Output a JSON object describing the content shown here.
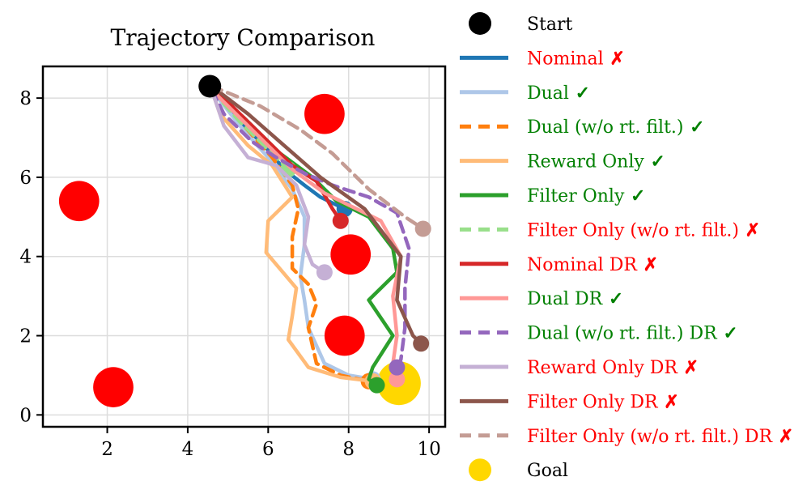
{
  "chart_data": {
    "type": "line",
    "title": "Trajectory Comparison",
    "xlabel": "",
    "ylabel": "",
    "xlim": [
      0.4,
      10.4
    ],
    "ylim": [
      -0.3,
      8.8
    ],
    "xticks": [
      2,
      4,
      6,
      8,
      10
    ],
    "yticks": [
      0,
      2,
      4,
      6,
      8
    ],
    "grid": true,
    "start": {
      "name": "Start",
      "x": 4.55,
      "y": 8.3,
      "color": "#000000"
    },
    "goal": {
      "name": "Goal",
      "x": 9.25,
      "y": 0.8,
      "color": "#ffd700"
    },
    "obstacles": [
      {
        "x": 1.3,
        "y": 5.4,
        "r": 0.5
      },
      {
        "x": 7.4,
        "y": 7.6,
        "r": 0.5
      },
      {
        "x": 8.05,
        "y": 4.05,
        "r": 0.5
      },
      {
        "x": 7.9,
        "y": 2.0,
        "r": 0.5
      },
      {
        "x": 2.15,
        "y": 0.7,
        "r": 0.5
      }
    ],
    "series": [
      {
        "name": "Nominal",
        "mark": "✗",
        "status_color": "#ff0000",
        "color": "#1f77b4",
        "dash": "solid",
        "x": [
          4.6,
          5.2,
          5.9,
          6.4,
          6.9,
          7.3,
          7.9
        ],
        "y": [
          8.2,
          7.5,
          6.8,
          6.2,
          5.8,
          5.5,
          5.2
        ]
      },
      {
        "name": "Dual",
        "mark": "✓",
        "status_color": "#008000",
        "color": "#aec7e8",
        "dash": "solid",
        "x": [
          4.6,
          5.3,
          6.0,
          6.6,
          6.9,
          6.9,
          6.8,
          6.9,
          7.0,
          7.4,
          8.0,
          8.6
        ],
        "y": [
          8.2,
          7.3,
          6.5,
          5.7,
          5.0,
          4.3,
          3.5,
          2.9,
          2.2,
          1.3,
          1.0,
          0.9
        ]
      },
      {
        "name": "Dual (w/o rt. filt.)",
        "mark": "✓",
        "status_color": "#008000",
        "color": "#ff7f0e",
        "dash": "dashed",
        "x": [
          4.6,
          5.4,
          6.1,
          6.6,
          6.75,
          6.6,
          6.6,
          7.0,
          7.2,
          7.0,
          7.2,
          7.8,
          8.5
        ],
        "y": [
          8.2,
          7.3,
          6.5,
          5.8,
          5.2,
          4.5,
          3.7,
          3.3,
          2.8,
          2.2,
          1.3,
          1.0,
          0.85
        ]
      },
      {
        "name": "Reward Only",
        "mark": "✓",
        "status_color": "#008000",
        "color": "#ffbb78",
        "dash": "solid",
        "x": [
          4.6,
          4.8,
          5.5,
          6.1,
          6.6,
          6.0,
          5.95,
          6.7,
          6.6,
          6.5,
          7.0,
          7.8,
          8.6
        ],
        "y": [
          8.2,
          7.6,
          6.8,
          6.3,
          5.5,
          4.9,
          4.1,
          3.2,
          2.5,
          1.9,
          1.2,
          0.95,
          0.85
        ]
      },
      {
        "name": "Filter Only",
        "mark": "✓",
        "status_color": "#008000",
        "color": "#2ca02c",
        "dash": "solid",
        "x": [
          4.6,
          5.4,
          6.3,
          7.1,
          7.7,
          8.5,
          9.1,
          9.2,
          8.5,
          9.1,
          8.6,
          8.5,
          8.7
        ],
        "y": [
          8.2,
          7.5,
          6.6,
          6.0,
          5.4,
          5.0,
          4.2,
          3.6,
          2.9,
          2.0,
          1.2,
          0.9,
          0.75
        ]
      },
      {
        "name": "Filter Only (w/o rt. filt.)",
        "mark": "✗",
        "status_color": "#ff0000",
        "color": "#98df8a",
        "dash": "dashed",
        "x": [
          4.6,
          5.3,
          6.1,
          6.5
        ],
        "y": [
          8.2,
          7.4,
          6.6,
          6.2
        ]
      },
      {
        "name": "Nominal DR",
        "mark": "✗",
        "status_color": "#ff0000",
        "color": "#d62728",
        "dash": "solid",
        "x": [
          4.6,
          5.3,
          5.9,
          6.6,
          7.2,
          7.6,
          7.8
        ],
        "y": [
          8.3,
          7.6,
          7.0,
          6.3,
          5.9,
          5.2,
          4.9
        ]
      },
      {
        "name": "Dual DR",
        "mark": "✓",
        "status_color": "#008000",
        "color": "#ff9896",
        "dash": "solid",
        "x": [
          4.6,
          5.3,
          6.0,
          6.6,
          7.4,
          8.2,
          8.8,
          9.3,
          9.1,
          9.2,
          9.1,
          9.2
        ],
        "y": [
          8.2,
          7.5,
          6.8,
          6.2,
          5.6,
          5.2,
          4.9,
          4.0,
          3.0,
          2.0,
          1.3,
          0.9
        ]
      },
      {
        "name": "Dual (w/o rt. filt.) DR",
        "mark": "✓",
        "status_color": "#008000",
        "color": "#9467bd",
        "dash": "dashed",
        "x": [
          4.6,
          4.9,
          5.6,
          6.2,
          6.9,
          7.6,
          8.5,
          9.2,
          9.5,
          9.4,
          9.4,
          9.3,
          9.2
        ],
        "y": [
          8.2,
          7.6,
          6.9,
          6.5,
          6.1,
          5.8,
          5.5,
          5.1,
          4.2,
          3.2,
          2.2,
          1.4,
          1.2
        ]
      },
      {
        "name": "Reward Only DR",
        "mark": "✗",
        "status_color": "#ff0000",
        "color": "#c5b0d5",
        "dash": "solid",
        "x": [
          4.6,
          4.9,
          5.5,
          6.2,
          6.7,
          7.0,
          6.9,
          7.1,
          7.4
        ],
        "y": [
          8.2,
          7.3,
          6.5,
          6.3,
          5.8,
          5.0,
          4.3,
          3.8,
          3.6
        ]
      },
      {
        "name": "Filter Only DR",
        "mark": "✗",
        "status_color": "#ff0000",
        "color": "#8c564b",
        "dash": "solid",
        "x": [
          4.6,
          5.5,
          6.4,
          7.3,
          8.4,
          9.3,
          9.2,
          9.6,
          9.8
        ],
        "y": [
          8.3,
          7.6,
          6.8,
          6.0,
          5.2,
          4.0,
          2.9,
          2.0,
          1.8
        ]
      },
      {
        "name": "Filter Only (w/o rt. filt.) DR",
        "mark": "✗",
        "status_color": "#ff0000",
        "color": "#c49c94",
        "dash": "dashed",
        "x": [
          4.6,
          5.8,
          6.8,
          7.6,
          8.5,
          9.4,
          9.85
        ],
        "y": [
          8.3,
          7.8,
          7.2,
          6.6,
          5.7,
          5.0,
          4.7
        ]
      }
    ],
    "legend": {
      "placement": "outside-right"
    }
  }
}
